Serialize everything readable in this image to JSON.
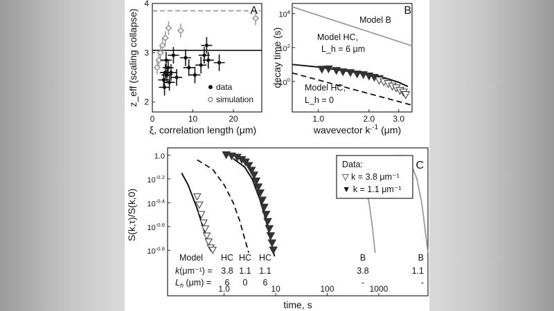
{
  "chart_data": [
    {
      "panel": "A",
      "type": "scatter",
      "xlabel": "ξ, correlation length (μm)",
      "ylabel": "z_eff (scaling collapse)",
      "xlim": [
        0,
        27
      ],
      "ylim": [
        1.8,
        4.0
      ],
      "xticks": [
        "0",
        "10",
        "20"
      ],
      "yticks": [
        "2",
        "3",
        "4"
      ],
      "legend": [
        "data",
        "simulation"
      ],
      "legend_position": "bottom-right",
      "reference_lines": [
        {
          "name": "solid",
          "y": 3.05
        },
        {
          "name": "dashed",
          "y": 3.85
        }
      ],
      "series": [
        {
          "name": "data",
          "points": [
            {
              "x": 2.8,
              "y": 2.45
            },
            {
              "x": 3.0,
              "y": 2.3
            },
            {
              "x": 3.2,
              "y": 2.6
            },
            {
              "x": 3.4,
              "y": 2.85
            },
            {
              "x": 3.6,
              "y": 2.55
            },
            {
              "x": 3.9,
              "y": 2.7
            },
            {
              "x": 4.2,
              "y": 2.4
            },
            {
              "x": 4.6,
              "y": 2.6
            },
            {
              "x": 5.2,
              "y": 2.95
            },
            {
              "x": 6.0,
              "y": 2.5
            },
            {
              "x": 8.2,
              "y": 2.9
            },
            {
              "x": 9.0,
              "y": 2.7
            },
            {
              "x": 10.5,
              "y": 2.55
            },
            {
              "x": 12.0,
              "y": 2.75
            },
            {
              "x": 12.8,
              "y": 2.95
            },
            {
              "x": 13.4,
              "y": 3.15
            },
            {
              "x": 13.8,
              "y": 2.85
            },
            {
              "x": 16.5,
              "y": 2.8
            }
          ]
        },
        {
          "name": "simulation",
          "points": [
            {
              "x": 1.2,
              "y": 2.7
            },
            {
              "x": 1.6,
              "y": 2.85
            },
            {
              "x": 2.0,
              "y": 3.0
            },
            {
              "x": 2.5,
              "y": 3.15
            },
            {
              "x": 3.2,
              "y": 3.3
            },
            {
              "x": 4.0,
              "y": 3.5
            },
            {
              "x": 7.0,
              "y": 3.45
            },
            {
              "x": 25.5,
              "y": 3.7
            }
          ]
        }
      ]
    },
    {
      "panel": "B",
      "type": "line",
      "xlabel": "wavevector k, (μm)",
      "xlabel_superscript": "-1",
      "ylabel": "decay time (s)",
      "xscale": "log",
      "yscale": "log",
      "xlim": [
        0.7,
        3.6
      ],
      "ylim": [
        -1.8,
        4.6
      ],
      "xticks": [
        "1.0",
        "2.0",
        "3.0"
      ],
      "yticks": [
        {
          "base": "10",
          "exp": "4"
        },
        {
          "base": "10",
          "exp": "2"
        },
        {
          "base": "10",
          "exp": "0"
        }
      ],
      "annotations": [
        "Model B",
        "Model HC,",
        "L_h = 6 μm",
        "Model HC,",
        "L_h = 0"
      ],
      "series": [
        {
          "name": "Model B",
          "x": [
            0.7,
            3.6
          ],
          "log10_y": [
            4.4,
            2.1
          ]
        },
        {
          "name": "Model HC, L_h = 6 μm",
          "x": [
            0.7,
            1.0,
            1.5,
            2.0,
            2.5,
            3.0,
            3.4
          ],
          "log10_y": [
            1.0,
            0.85,
            0.6,
            0.4,
            0.2,
            -0.05,
            -0.3
          ]
        },
        {
          "name": "Model HC, L_h = 0",
          "x": [
            0.7,
            3.6
          ],
          "log10_y": [
            0.5,
            -1.4
          ]
        },
        {
          "name": "k = 1.1 μm⁻¹ data",
          "x": [
            1.05,
            1.15,
            1.28,
            1.4,
            1.55,
            1.7,
            1.85,
            2.0,
            2.15,
            2.3
          ],
          "log10_y": [
            0.7,
            0.72,
            0.62,
            0.55,
            0.5,
            0.42,
            0.38,
            0.3,
            0.22,
            0.15
          ]
        },
        {
          "name": "k = 3.8 μm⁻¹ data",
          "x": [
            2.3,
            2.45,
            2.6,
            2.75,
            2.9,
            3.05,
            3.2,
            3.3
          ],
          "log10_y": [
            0.05,
            -0.05,
            -0.15,
            -0.3,
            -0.4,
            -0.55,
            -0.65,
            -0.8
          ]
        }
      ]
    },
    {
      "panel": "C",
      "type": "line",
      "xlabel": "time, s",
      "ylabel": "S(k,τ)/S(k,0)",
      "xscale": "log",
      "yscale": "log",
      "xlim": [
        0.08,
        9000
      ],
      "ylim": [
        -0.88,
        0.02
      ],
      "xticks": [
        "1.0",
        "10",
        "100",
        "1000"
      ],
      "yticks": [
        {
          "base": "1.0",
          "exp": ""
        },
        {
          "base": "10",
          "exp": "-0.2"
        },
        {
          "base": "10",
          "exp": "-0.4"
        },
        {
          "base": "10",
          "exp": "-0.6"
        },
        {
          "base": "10",
          "exp": "-0.8"
        }
      ],
      "legend": {
        "title": "Data:",
        "items": [
          "▽ k = 3.8 μm⁻¹",
          "▼ k = 1.1 μm⁻¹"
        ],
        "position": "top-right"
      },
      "model_table": {
        "row_labels": [
          "Model",
          "k(μm⁻¹) =",
          "L_h (μm) ="
        ],
        "columns": [
          {
            "model": "HC",
            "k": "3.8",
            "Lh": "6"
          },
          {
            "model": "HC",
            "k": "1.1",
            "Lh": "0"
          },
          {
            "model": "HC",
            "k": "1.1",
            "Lh": "6"
          },
          {
            "model": "B",
            "k": "3.8",
            "Lh": "-"
          },
          {
            "model": "B",
            "k": "1.1",
            "Lh": "-"
          }
        ]
      },
      "series": [
        {
          "name": "HC k=3.8 Lh=6",
          "x": [
            0.15,
            0.2,
            0.3,
            0.4,
            0.5,
            0.6
          ],
          "log10_y": [
            -0.15,
            -0.25,
            -0.45,
            -0.62,
            -0.75,
            -0.82
          ]
        },
        {
          "name": "HC k=1.1 Lh=0",
          "x": [
            0.3,
            0.6,
            1.0,
            1.5,
            2.0,
            2.5,
            3.0
          ],
          "log10_y": [
            -0.04,
            -0.12,
            -0.25,
            -0.4,
            -0.55,
            -0.7,
            -0.82
          ]
        },
        {
          "name": "HC k=1.1 Lh=6",
          "x": [
            1.5,
            2.5,
            3.5,
            5.0,
            6.5,
            8.0,
            9.5
          ],
          "log10_y": [
            -0.03,
            -0.1,
            -0.2,
            -0.38,
            -0.55,
            -0.72,
            -0.85
          ]
        },
        {
          "name": "B k=3.8",
          "x": [
            150,
            300,
            500,
            650,
            750,
            850
          ],
          "log10_y": [
            0.0,
            -0.05,
            -0.2,
            -0.4,
            -0.6,
            -0.82
          ]
        },
        {
          "name": "B k=1.1",
          "x": [
            2500,
            4000,
            5500,
            6800,
            7800,
            9000
          ],
          "log10_y": [
            0.0,
            -0.05,
            -0.2,
            -0.4,
            -0.6,
            -0.82
          ]
        },
        {
          "name": "k = 1.1 μm⁻¹ data",
          "x": [
            1.1,
            1.4,
            1.8,
            2.2,
            2.6,
            3.0,
            3.4,
            3.8,
            4.2,
            4.6,
            5.0,
            5.5,
            6.0,
            6.5,
            7.0,
            7.5,
            8.0,
            8.5,
            9.0
          ],
          "log10_y": [
            0.0,
            -0.01,
            -0.02,
            -0.04,
            -0.06,
            -0.09,
            -0.13,
            -0.17,
            -0.22,
            -0.27,
            -0.32,
            -0.38,
            -0.44,
            -0.5,
            -0.56,
            -0.62,
            -0.68,
            -0.74,
            -0.8
          ]
        },
        {
          "name": "k = 3.8 μm⁻¹ data",
          "x": [
            0.3,
            0.33,
            0.36,
            0.4,
            0.43,
            0.46,
            0.5,
            0.55,
            0.6
          ],
          "log10_y": [
            -0.35,
            -0.42,
            -0.5,
            -0.57,
            -0.62,
            -0.68,
            -0.73,
            -0.78,
            -0.8
          ]
        }
      ]
    }
  ]
}
